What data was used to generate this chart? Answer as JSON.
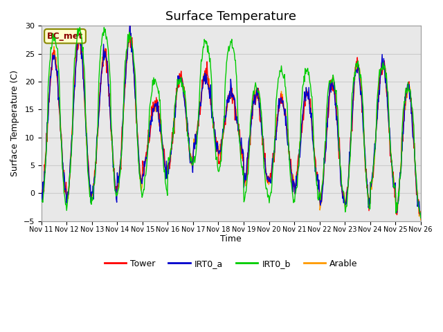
{
  "title": "Surface Temperature",
  "ylabel": "Surface Temperature (C)",
  "xlabel": "Time",
  "ylim": [
    -5,
    30
  ],
  "site_label": "BC_met",
  "bg_color": "#e8e8e8",
  "grid_color": "#cccccc",
  "yticks": [
    -5,
    0,
    5,
    10,
    15,
    20,
    25,
    30
  ],
  "x_tick_labels": [
    "Nov 11",
    "Nov 12",
    "Nov 13",
    "Nov 14",
    "Nov 15",
    "Nov 16",
    "Nov 17",
    "Nov 18",
    "Nov 19",
    "Nov 20",
    "Nov 21",
    "Nov 22",
    "Nov 23",
    "Nov 24",
    "Nov 25",
    "Nov 26"
  ],
  "series": {
    "Tower": {
      "color": "#ff0000"
    },
    "IRT0_a": {
      "color": "#0000cc"
    },
    "IRT0_b": {
      "color": "#00cc00"
    },
    "Arable": {
      "color": "#ff9900"
    }
  },
  "title_fontsize": 13,
  "label_fontsize": 9,
  "tick_fontsize": 8
}
